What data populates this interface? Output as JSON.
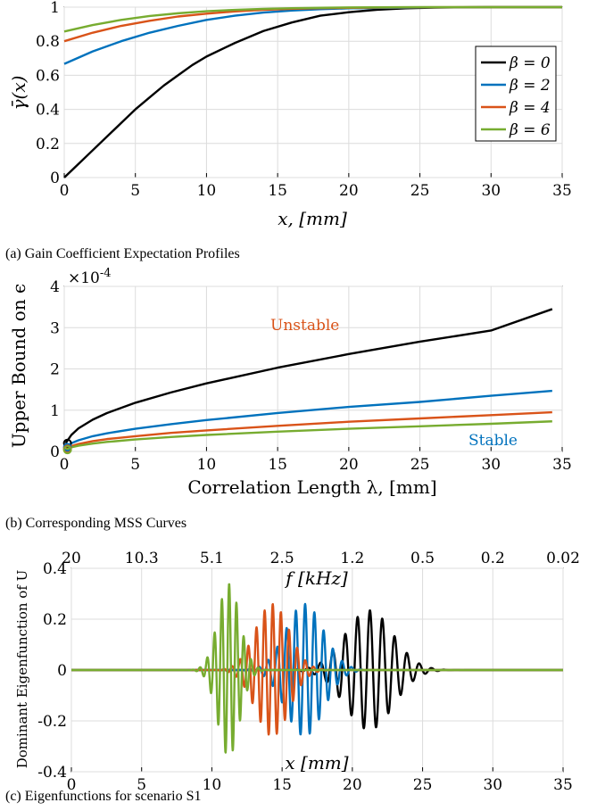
{
  "chart_data": [
    {
      "type": "line",
      "caption": "(a) Gain Coefficient Expectation Profiles",
      "xlabel": "x, [mm]",
      "ylabel": "γ̄(x)",
      "xlim": [
        0,
        35
      ],
      "ylim": [
        0,
        1
      ],
      "xticks": [
        0,
        5,
        10,
        15,
        20,
        25,
        30,
        35
      ],
      "yticks": [
        0,
        0.2,
        0.4,
        0.6,
        0.8,
        1
      ],
      "ytick_labels": [
        "0",
        "0.2",
        "0.4",
        "0.6",
        "0.8",
        "1"
      ],
      "legend_position": "right",
      "series": [
        {
          "name": "β = 0",
          "color": "#000000",
          "x": [
            0,
            1,
            2,
            3,
            4,
            5,
            6,
            7,
            8,
            9,
            10,
            12,
            14,
            16,
            18,
            20,
            22,
            24,
            26,
            28,
            30,
            35
          ],
          "y": [
            0,
            0.08,
            0.16,
            0.24,
            0.32,
            0.4,
            0.47,
            0.54,
            0.6,
            0.66,
            0.71,
            0.79,
            0.86,
            0.91,
            0.95,
            0.97,
            0.985,
            0.993,
            0.997,
            0.999,
            1.0,
            1.0
          ]
        },
        {
          "name": "β = 2",
          "color": "#0072BD",
          "x": [
            0,
            2,
            4,
            6,
            8,
            10,
            12,
            14,
            16,
            18,
            20,
            25,
            30,
            35
          ],
          "y": [
            0.667,
            0.74,
            0.8,
            0.85,
            0.89,
            0.925,
            0.95,
            0.968,
            0.98,
            0.988,
            0.993,
            0.998,
            1.0,
            1.0
          ]
        },
        {
          "name": "β = 4",
          "color": "#D95319",
          "x": [
            0,
            2,
            4,
            6,
            8,
            10,
            12,
            14,
            16,
            18,
            20,
            25,
            30,
            35
          ],
          "y": [
            0.8,
            0.85,
            0.89,
            0.92,
            0.945,
            0.962,
            0.975,
            0.984,
            0.99,
            0.994,
            0.996,
            0.999,
            1.0,
            1.0
          ]
        },
        {
          "name": "β = 6",
          "color": "#77AC30",
          "x": [
            0,
            2,
            4,
            6,
            8,
            10,
            12,
            14,
            16,
            18,
            20,
            25,
            30,
            35
          ],
          "y": [
            0.857,
            0.895,
            0.925,
            0.948,
            0.964,
            0.976,
            0.984,
            0.99,
            0.994,
            0.996,
            0.998,
            1.0,
            1.0,
            1.0
          ]
        }
      ]
    },
    {
      "type": "line",
      "caption": "(b) Corresponding MSS Curves",
      "xlabel": "Correlation Length λ, [mm]",
      "ylabel": "Upper Bound on ϵ",
      "exponent_label": "×10-4",
      "xlim": [
        0,
        35
      ],
      "ylim": [
        0,
        4
      ],
      "xticks": [
        0,
        5,
        10,
        15,
        20,
        25,
        30,
        35
      ],
      "yticks": [
        0,
        1,
        2,
        3,
        4
      ],
      "annotations": [
        {
          "text": "Unstable",
          "color": "#D95319",
          "x": 19,
          "y": 3.2
        },
        {
          "text": "Stable",
          "color": "#0072BD",
          "x": 30.5,
          "y": 0.28
        }
      ],
      "series": [
        {
          "name": "β = 0",
          "color": "#000000",
          "x": [
            0.1,
            0.5,
            1,
            2,
            3,
            5,
            7.5,
            10,
            15,
            20,
            25,
            30,
            34.3
          ],
          "y": [
            0.2,
            0.4,
            0.56,
            0.77,
            0.93,
            1.18,
            1.43,
            1.65,
            2.03,
            2.36,
            2.66,
            2.93,
            3.45
          ]
        },
        {
          "name": "β = 2",
          "color": "#0072BD",
          "x": [
            0.1,
            0.5,
            1,
            2,
            3,
            5,
            7.5,
            10,
            15,
            20,
            25,
            30,
            34.3
          ],
          "y": [
            0.1,
            0.2,
            0.27,
            0.37,
            0.44,
            0.55,
            0.66,
            0.76,
            0.93,
            1.08,
            1.2,
            1.35,
            1.47
          ]
        },
        {
          "name": "β = 4",
          "color": "#D95319",
          "x": [
            0.1,
            0.5,
            1,
            2,
            3,
            5,
            7.5,
            10,
            15,
            20,
            25,
            30,
            34.3
          ],
          "y": [
            0.06,
            0.13,
            0.18,
            0.25,
            0.3,
            0.37,
            0.45,
            0.51,
            0.62,
            0.72,
            0.8,
            0.88,
            0.95
          ]
        },
        {
          "name": "β = 6",
          "color": "#77AC30",
          "x": [
            0.1,
            0.5,
            1,
            2,
            3,
            5,
            7.5,
            10,
            15,
            20,
            25,
            30,
            34.3
          ],
          "y": [
            0.04,
            0.1,
            0.14,
            0.19,
            0.23,
            0.29,
            0.35,
            0.4,
            0.48,
            0.55,
            0.61,
            0.67,
            0.73
          ]
        }
      ]
    },
    {
      "type": "line",
      "caption": "(c) Eigenfunctions for scenario S1",
      "xlabel": "x [mm]",
      "x2label": "f [kHz]",
      "ylabel": "Dominant Eigenfunction of U",
      "xlim": [
        0,
        35
      ],
      "ylim": [
        -0.4,
        0.4
      ],
      "xticks": [
        0,
        5,
        10,
        15,
        20,
        25,
        30,
        35
      ],
      "yticks": [
        -0.4,
        -0.2,
        0,
        0.2,
        0.4
      ],
      "ytick_labels": [
        "-0.4",
        "-0.2",
        "0",
        "0.2",
        "0.4"
      ],
      "x2ticks": [
        "20",
        "10.3",
        "5.1",
        "2.5",
        "1.2",
        "0.5",
        "0.2",
        "0.02"
      ],
      "series": [
        {
          "name": "β = 0",
          "color": "#000000",
          "center": 21.2,
          "amplitude": 0.235,
          "width": 2.4,
          "period": 0.88
        },
        {
          "name": "β = 2",
          "color": "#0072BD",
          "center": 16.6,
          "amplitude": 0.26,
          "width": 1.9,
          "period": 0.66
        },
        {
          "name": "β = 4",
          "color": "#D95319",
          "center": 14.3,
          "amplitude": 0.26,
          "width": 1.7,
          "period": 0.58
        },
        {
          "name": "β = 6",
          "color": "#77AC30",
          "center": 11.2,
          "amplitude": 0.34,
          "width": 1.1,
          "period": 0.52
        }
      ]
    }
  ]
}
